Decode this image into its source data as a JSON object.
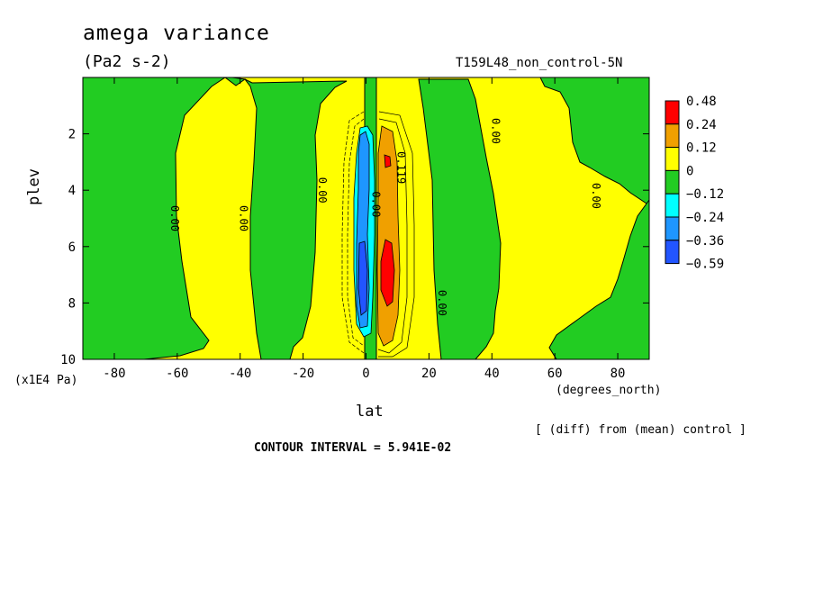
{
  "header": {
    "title": "amega variance",
    "units": "(Pa2 s-2)",
    "run": "T159L48_non_control-5N",
    "note": "[ (diff) from (mean) control ]",
    "contour_interval": "CONTOUR INTERVAL = 5.941E-02"
  },
  "colors": {
    "red": "#ff0000",
    "orange": "#f0a000",
    "yellow": "#ffff00",
    "green": "#22cc22",
    "cyan": "#00ffff",
    "lightblue": "#1e96ff",
    "blue": "#2255ff"
  },
  "chart_data": {
    "type": "heatmap",
    "title": "amega variance",
    "subtitle": "(Pa2 s-2)",
    "xlabel": "lat",
    "ylabel": "plev",
    "x_unit": "(degrees_north)",
    "y_unit": "(x1E4 Pa)",
    "xlim": [
      -90,
      90
    ],
    "ylim": [
      10,
      0
    ],
    "x_ticks": [
      -80,
      -60,
      -40,
      -20,
      0,
      20,
      40,
      60,
      80
    ],
    "x_tick_labels": [
      "-80",
      "-60",
      "-40",
      "-20",
      "0",
      "20",
      "40",
      "60",
      "80"
    ],
    "y_ticks": [
      2,
      4,
      6,
      8,
      10
    ],
    "y_tick_labels": [
      "2",
      "4",
      "6",
      "8",
      "10"
    ],
    "legend": {
      "placement": "right",
      "labels": [
        "0.48",
        "0.24",
        "0.12",
        "0",
        "−0.12",
        "−0.24",
        "−0.36",
        "−0.59"
      ],
      "colors": [
        "#ff0000",
        "#f0a000",
        "#ffff00",
        "#22cc22",
        "#00ffff",
        "#1e96ff",
        "#2255ff"
      ]
    },
    "contour_labels": [
      {
        "text": "0.00",
        "lat": -62,
        "plev": 5.0
      },
      {
        "text": "0.00",
        "lat": -40,
        "plev": 5.0
      },
      {
        "text": "0.00",
        "lat": -15,
        "plev": 4.0
      },
      {
        "text": "0.00",
        "lat": 2,
        "plev": 4.5
      },
      {
        "text": "0.119",
        "lat": 10,
        "plev": 3.2
      },
      {
        "text": "0.00",
        "lat": 23,
        "plev": 8.0
      },
      {
        "text": "0.00",
        "lat": 40,
        "plev": 1.9
      },
      {
        "text": "0.00",
        "lat": 72,
        "plev": 4.2
      }
    ]
  }
}
